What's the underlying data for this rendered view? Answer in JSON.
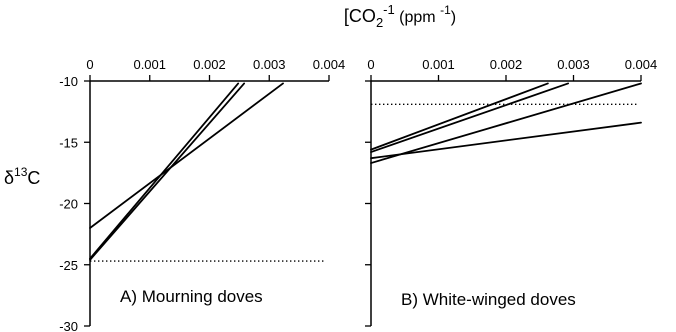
{
  "figure": {
    "xlabel": {
      "main": "[CO",
      "sub": "2",
      "sup": "-1",
      "unit_open": " (ppm ",
      "unit_sup": "-1",
      "unit_close": ")"
    },
    "ylabel": {
      "pre": "δ",
      "sup": "13",
      "post": "C"
    }
  },
  "chart_data": [
    {
      "type": "line",
      "panel_label": "A) Mourning doves",
      "xlim": [
        0,
        0.004
      ],
      "ylim": [
        -30,
        -10
      ],
      "x_axis_position": "top",
      "xticks": [
        0,
        0.001,
        0.002,
        0.003,
        0.004
      ],
      "xtick_labels": [
        "0",
        "0.001",
        "0.002",
        "0.003",
        "0.004"
      ],
      "yticks": [
        -10,
        -15,
        -20,
        -25,
        -30
      ],
      "ytick_labels": [
        "-10",
        "-15",
        "-20",
        "-25",
        "-30"
      ],
      "grid": false,
      "series": [
        {
          "x": [
            0,
            0.00248
          ],
          "y": [
            -24.5,
            -10.2
          ]
        },
        {
          "x": [
            0,
            0.00258
          ],
          "y": [
            -24.6,
            -10.2
          ]
        },
        {
          "x": [
            0,
            0.00323
          ],
          "y": [
            -22.0,
            -10.2
          ]
        }
      ],
      "reference_line": {
        "y": -24.7,
        "style": "dotted"
      }
    },
    {
      "type": "line",
      "panel_label": "B) White-winged doves",
      "xlim": [
        0,
        0.004
      ],
      "ylim": [
        -30,
        -10
      ],
      "x_axis_position": "top",
      "xticks": [
        0,
        0.001,
        0.002,
        0.003,
        0.004
      ],
      "xtick_labels": [
        "0",
        "0.001",
        "0.002",
        "0.003",
        "0.004"
      ],
      "yticks": [
        -10,
        -15,
        -20,
        -25,
        -30
      ],
      "grid": false,
      "series": [
        {
          "x": [
            0,
            0.00262
          ],
          "y": [
            -15.6,
            -10.2
          ]
        },
        {
          "x": [
            0,
            0.00292
          ],
          "y": [
            -15.8,
            -10.2
          ]
        },
        {
          "x": [
            0,
            0.004
          ],
          "y": [
            -16.7,
            -10.2
          ]
        },
        {
          "x": [
            0,
            0.004
          ],
          "y": [
            -16.3,
            -13.4
          ]
        }
      ],
      "reference_line": {
        "y": -11.9,
        "style": "dotted"
      }
    }
  ]
}
